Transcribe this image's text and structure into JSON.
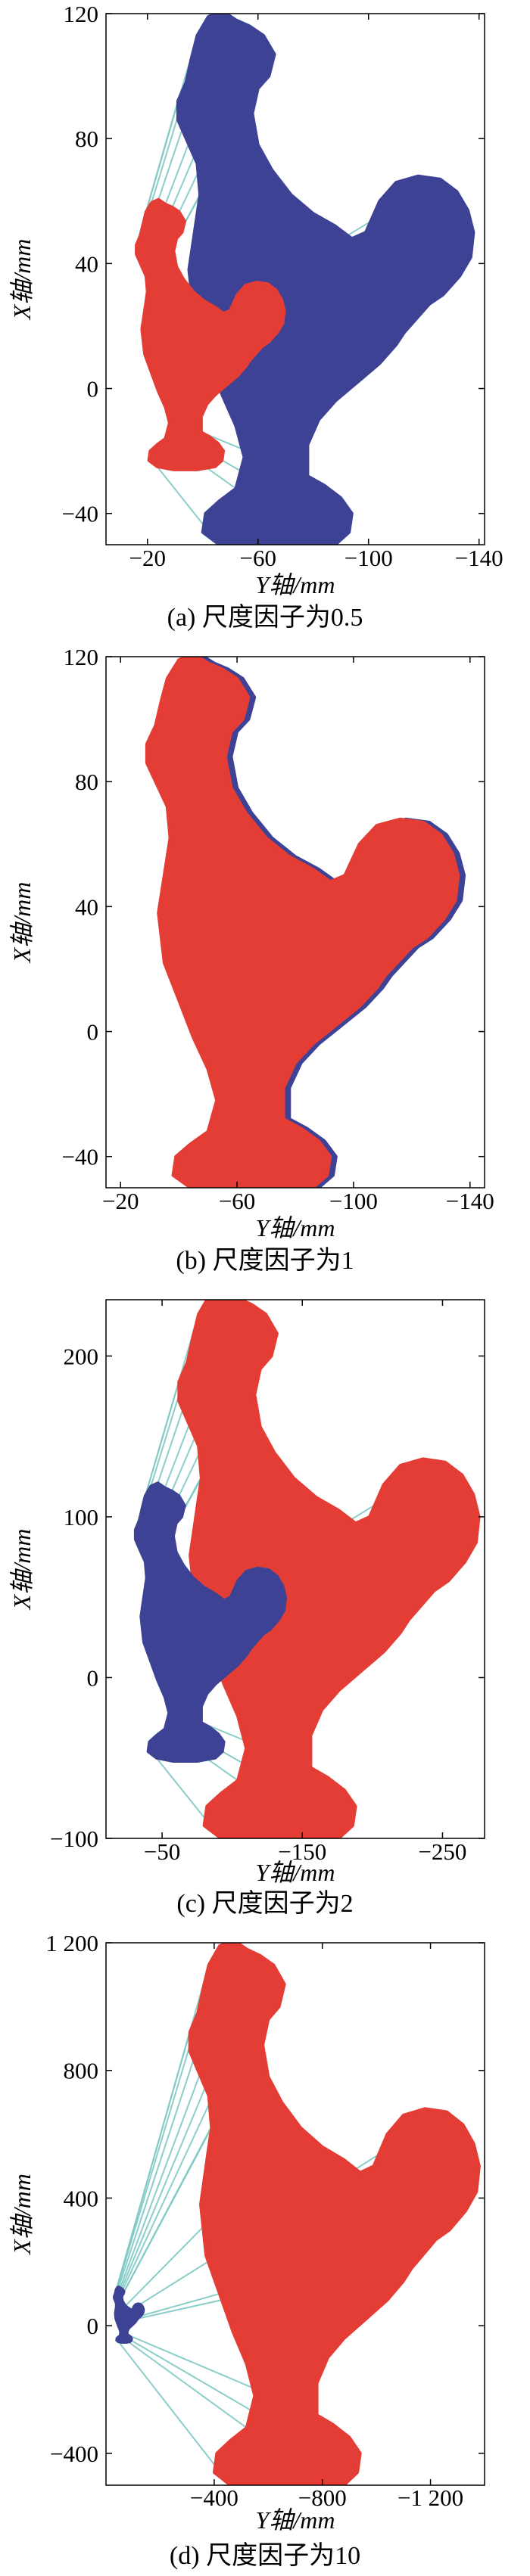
{
  "colors": {
    "reference_cloud": "#3d4294",
    "scaled_cloud": "#e43d35",
    "correspondences": "#7fc9c4",
    "axis": "#000000"
  },
  "chart_data": [
    {
      "type": "scatter",
      "caption": "(a) 尺度因子为0.5",
      "xlabel": "Y轴/mm",
      "ylabel": "X轴/mm",
      "xticks": [
        -20,
        -60,
        -100,
        -140
      ],
      "xtick_labels": [
        "−20",
        "−60",
        "−100",
        "−140"
      ],
      "yticks": [
        120,
        80,
        40,
        0,
        -40
      ],
      "ytick_labels": [
        "120",
        "80",
        "40",
        "0",
        "−40"
      ],
      "xlim": [
        -5,
        -142
      ],
      "ylim": [
        -50,
        120
      ],
      "x_reversed": true,
      "scale_factor": 0.5,
      "series": [
        {
          "role": "reference",
          "color": "#3d4294",
          "center": [
            -75,
            38
          ],
          "scale": 1.0
        },
        {
          "role": "scaled",
          "color": "#e43d35",
          "center": [
            -38,
            19
          ],
          "scale": 0.5
        },
        {
          "role": "correspondences",
          "color": "#7fc9c4"
        }
      ]
    },
    {
      "type": "scatter",
      "caption": "(b) 尺度因子为1",
      "xlabel": "Y轴/mm",
      "ylabel": "X轴/mm",
      "xticks": [
        -20,
        -60,
        -100,
        -140
      ],
      "xtick_labels": [
        "−20",
        "−60",
        "−100",
        "−140"
      ],
      "yticks": [
        120,
        80,
        40,
        0,
        -40
      ],
      "ytick_labels": [
        "120",
        "80",
        "40",
        "0",
        "−40"
      ],
      "xlim": [
        -15,
        -145
      ],
      "ylim": [
        -50,
        120
      ],
      "x_reversed": true,
      "scale_factor": 1,
      "series": [
        {
          "role": "reference",
          "color": "#3d4294",
          "center": [
            -75,
            38
          ],
          "scale": 1.0
        },
        {
          "role": "scaled",
          "color": "#e43d35",
          "center": [
            -73,
            38
          ],
          "scale": 1.0
        },
        {
          "role": "correspondences",
          "color": "#7fc9c4"
        }
      ]
    },
    {
      "type": "scatter",
      "caption": "(c) 尺度因子为2",
      "xlabel": "Y轴/mm",
      "ylabel": "X轴/mm",
      "xticks": [
        -50,
        -150,
        -250
      ],
      "xtick_labels": [
        "−50",
        "−150",
        "−250"
      ],
      "yticks": [
        200,
        100,
        0,
        -100
      ],
      "ytick_labels": [
        "200",
        "100",
        "0",
        "−100"
      ],
      "xlim": [
        -10,
        -280
      ],
      "ylim": [
        -100,
        235
      ],
      "x_reversed": true,
      "scale_factor": 2,
      "series": [
        {
          "role": "reference",
          "color": "#3d4294",
          "center": [
            -75,
            38
          ],
          "scale": 1.0
        },
        {
          "role": "scaled",
          "color": "#e43d35",
          "center": [
            -150,
            76
          ],
          "scale": 2.0
        },
        {
          "role": "correspondences",
          "color": "#7fc9c4"
        }
      ]
    },
    {
      "type": "scatter",
      "caption": "(d) 尺度因子为10",
      "xlabel": "Y轴/mm",
      "ylabel": "X轴/mm",
      "xticks": [
        -400,
        -800,
        -1200
      ],
      "xtick_labels": [
        "−400",
        "−800",
        "−1 200"
      ],
      "yticks": [
        1200,
        800,
        400,
        0,
        -400
      ],
      "ytick_labels": [
        "1 200",
        "800",
        "400",
        "0",
        "−400"
      ],
      "xlim": [
        0,
        -1400
      ],
      "ylim": [
        -500,
        1200
      ],
      "x_reversed": true,
      "scale_factor": 10,
      "series": [
        {
          "role": "reference",
          "color": "#3d4294",
          "center": [
            -75,
            38
          ],
          "scale": 1.0
        },
        {
          "role": "scaled",
          "color": "#e43d35",
          "center": [
            -750,
            380
          ],
          "scale": 10.0
        },
        {
          "role": "correspondences",
          "color": "#7fc9c4"
        }
      ]
    }
  ]
}
